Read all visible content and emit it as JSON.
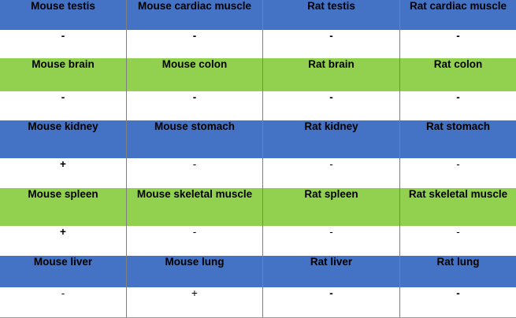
{
  "rows": [
    {
      "type": "header",
      "color": "#4472c4",
      "cells": [
        "Mouse testis",
        "Mouse cardiac muscle",
        "Rat testis",
        "Rat cardiac muscle"
      ]
    },
    {
      "type": "value",
      "cells": [
        "-",
        "-",
        "-",
        "-"
      ]
    },
    {
      "type": "header",
      "color": "#92d050",
      "cells": [
        "Mouse brain",
        "Mouse colon",
        "Rat brain",
        "Rat colon"
      ]
    },
    {
      "type": "value",
      "cells": [
        "-",
        "-",
        "-",
        "-"
      ]
    },
    {
      "type": "header",
      "color": "#4472c4",
      "cells": [
        "Mouse kidney",
        "Mouse stomach",
        "Rat kidney",
        "Rat stomach"
      ]
    },
    {
      "type": "value",
      "cells": [
        "+",
        "-",
        "-",
        "-"
      ]
    },
    {
      "type": "header",
      "color": "#92d050",
      "cells": [
        "Mouse spleen",
        "Mouse skeletal muscle",
        "Rat spleen",
        "Rat skeletal muscle"
      ]
    },
    {
      "type": "value",
      "cells": [
        "+",
        "-",
        "-",
        "-"
      ]
    },
    {
      "type": "header",
      "color": "#4472c4",
      "cells": [
        "Mouse liver",
        "Mouse lung",
        "Rat liver",
        "Rat lung"
      ]
    },
    {
      "type": "value",
      "cells": [
        "-",
        "+",
        "-",
        "-"
      ]
    }
  ]
}
